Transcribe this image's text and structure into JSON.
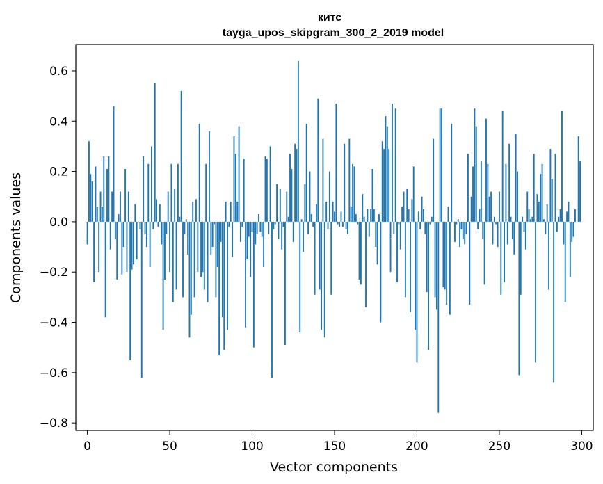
{
  "chart_data": {
    "type": "bar",
    "title_line1": "китс",
    "title_line2": "tayga_upos_skipgram_300_2_2019 model",
    "xlabel": "Vector components",
    "ylabel": "Components values",
    "xlim": [
      -7,
      307
    ],
    "ylim": [
      -0.83,
      0.705
    ],
    "x_ticks": [
      0,
      50,
      100,
      150,
      200,
      250,
      300
    ],
    "x_tick_labels": [
      "0",
      "50",
      "100",
      "150",
      "200",
      "250",
      "300"
    ],
    "y_ticks": [
      -0.8,
      -0.6,
      -0.4,
      -0.2,
      0.0,
      0.2,
      0.4,
      0.6
    ],
    "y_tick_labels": [
      "−0.8",
      "−0.6",
      "−0.4",
      "−0.2",
      "0.0",
      "0.2",
      "0.4",
      "0.6"
    ],
    "bar_color": "#1f77b4",
    "values": [
      -0.09,
      0.32,
      0.19,
      0.16,
      -0.24,
      0.22,
      0.06,
      -0.2,
      0.12,
      0.06,
      0.26,
      -0.38,
      0.21,
      0.26,
      -0.11,
      0.12,
      0.46,
      -0.07,
      -0.23,
      0.03,
      0.12,
      -0.21,
      -0.1,
      0.21,
      -0.2,
      0.12,
      -0.55,
      -0.19,
      -0.17,
      0.07,
      -0.15,
      0.0,
      -0.03,
      -0.62,
      0.26,
      -0.05,
      -0.1,
      0.23,
      -0.18,
      0.3,
      -0.03,
      0.55,
      0.09,
      -0.02,
      0.07,
      -0.09,
      -0.43,
      -0.23,
      -0.05,
      0.12,
      -0.2,
      0.23,
      -0.32,
      0.13,
      -0.27,
      0.23,
      0.02,
      0.52,
      -0.3,
      -0.05,
      0.01,
      -0.13,
      -0.46,
      -0.37,
      0.08,
      -0.3,
      0.09,
      -0.2,
      0.39,
      -0.22,
      -0.2,
      -0.27,
      0.23,
      -0.32,
      0.36,
      -0.13,
      -0.1,
      -0.01,
      -0.3,
      -0.18,
      -0.53,
      -0.08,
      -0.38,
      -0.51,
      0.08,
      -0.43,
      -0.02,
      0.08,
      -0.14,
      0.34,
      0.27,
      0.08,
      0.38,
      -0.08,
      -0.02,
      0.25,
      -0.42,
      -0.15,
      -0.06,
      -0.22,
      -0.04,
      -0.5,
      -0.09,
      -0.05,
      0.03,
      -0.04,
      -0.06,
      -0.18,
      0.26,
      0.25,
      -0.05,
      0.3,
      -0.62,
      -0.03,
      -0.01,
      0.15,
      -0.07,
      0.13,
      -0.11,
      -0.02,
      -0.49,
      0.12,
      0.02,
      0.27,
      0.21,
      -0.08,
      0.31,
      0.29,
      0.64,
      -0.44,
      0.01,
      -0.12,
      0.15,
      0.39,
      -0.05,
      0.2,
      0.03,
      -0.02,
      -0.29,
      0.07,
      0.49,
      -0.27,
      -0.43,
      0.33,
      -0.46,
      0.08,
      -0.03,
      0.2,
      -0.29,
      0.08,
      0.04,
      0.47,
      -0.01,
      -0.02,
      0.04,
      -0.02,
      0.31,
      -0.03,
      -0.05,
      0.33,
      0.06,
      0.23,
      0.22,
      0.03,
      -0.01,
      -0.23,
      -0.25,
      0.11,
      0.02,
      -0.34,
      0.05,
      -0.06,
      0.05,
      0.21,
      0.05,
      -0.1,
      -0.17,
      0.03,
      -0.4,
      0.32,
      0.29,
      0.42,
      0.38,
      0.29,
      -0.2,
      0.47,
      -0.05,
      0.45,
      -0.24,
      -0.01,
      -0.11,
      0.06,
      0.12,
      -0.3,
      0.13,
      0.05,
      -0.36,
      0.09,
      0.22,
      -0.43,
      -0.56,
      0.04,
      -0.03,
      0.1,
      0.05,
      -0.05,
      -0.28,
      -0.51,
      -0.01,
      0.02,
      0.33,
      -0.3,
      -0.35,
      -0.76,
      0.45,
      0.45,
      -0.26,
      -0.27,
      -0.33,
      0.06,
      -0.37,
      0.39,
      0.0,
      -0.08,
      -0.01,
      0.01,
      -0.1,
      -0.03,
      -0.07,
      -0.09,
      -0.05,
      0.27,
      -0.33,
      0.1,
      0.22,
      0.45,
      0.38,
      -0.03,
      0.05,
      0.24,
      -0.07,
      -0.25,
      0.41,
      0.23,
      0.1,
      0.12,
      -0.09,
      0.02,
      -0.01,
      -0.1,
      0.12,
      -0.29,
      0.44,
      -0.24,
      0.23,
      -0.09,
      0.31,
      0.02,
      -0.07,
      -0.13,
      0.35,
      0.2,
      -0.61,
      -0.29,
      0.02,
      -0.04,
      -0.11,
      0.12,
      0.05,
      0.01,
      0.02,
      0.27,
      -0.56,
      0.11,
      0.08,
      0.19,
      0.23,
      0.01,
      -0.05,
      0.07,
      -0.27,
      0.29,
      0.17,
      -0.64,
      0.27,
      -0.04,
      0.02,
      0.05,
      0.44,
      -0.09,
      -0.32,
      0.04,
      0.08,
      -0.22,
      -0.08,
      -0.06,
      0.05,
      0.0,
      0.34,
      0.24
    ]
  }
}
